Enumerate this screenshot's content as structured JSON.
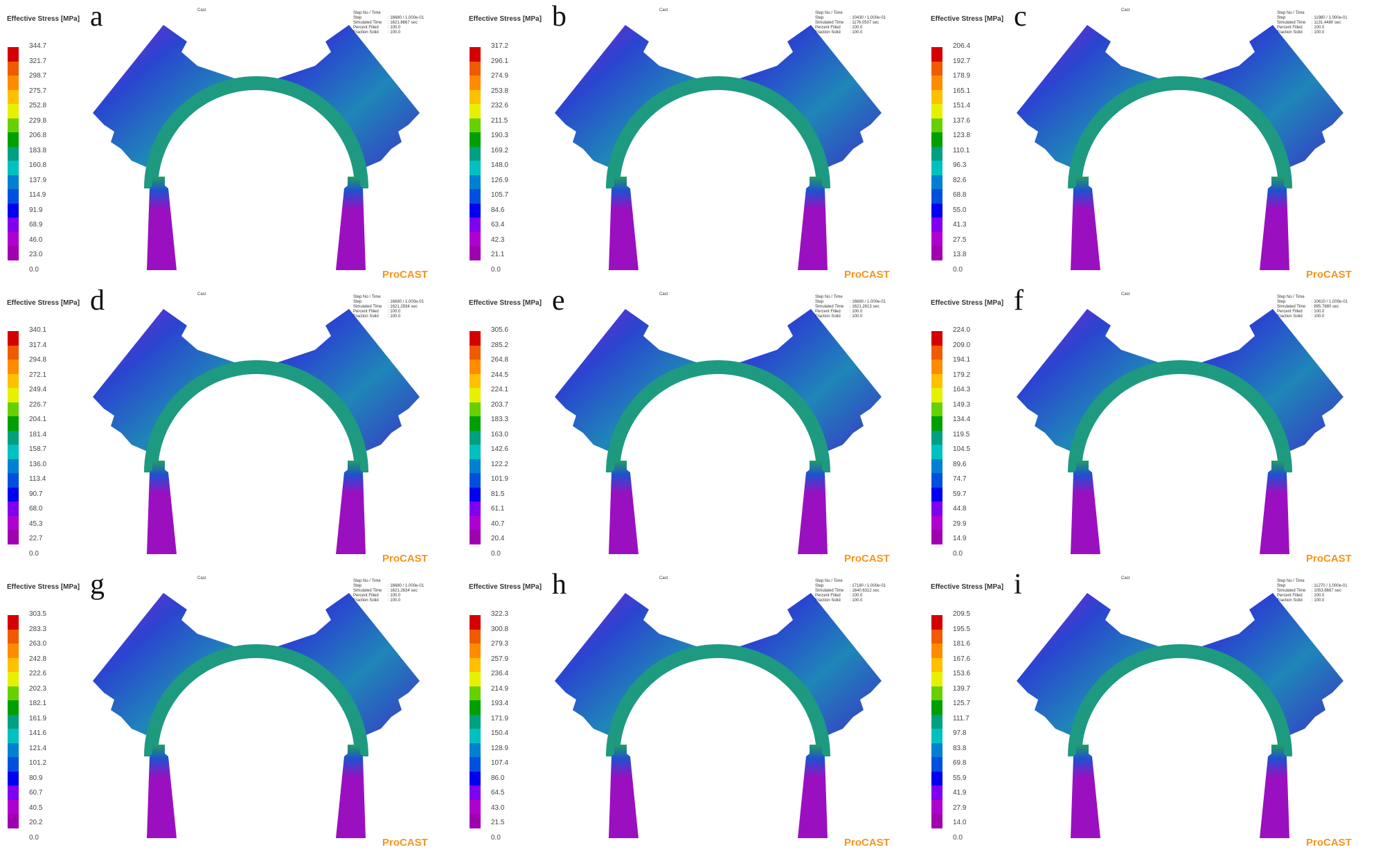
{
  "legend_title": "Effective Stress [MPa]",
  "colormap": [
    "#d40000",
    "#f05a00",
    "#ff8c00",
    "#ffc000",
    "#e6f000",
    "#66d000",
    "#00a000",
    "#00a080",
    "#00c0c0",
    "#0080d0",
    "#0050e0",
    "#0000f0",
    "#8000f0",
    "#b000d0",
    "#a000b0"
  ],
  "info_labels": [
    "Step No / Time Step",
    "Simulated Time",
    "Percent Filled",
    "Fraction Solid"
  ],
  "cast_label": "Cast",
  "logo": "ProCAST",
  "panels": [
    {
      "letter": "a",
      "legend_values": [
        "344.7",
        "321.7",
        "298.7",
        "275.7",
        "252.8",
        "229.8",
        "206.8",
        "183.8",
        "160.8",
        "137.9",
        "114.9",
        "91.9",
        "68.9",
        "46.0",
        "23.0",
        "0.0"
      ],
      "info_values": [
        ": 16680 / 1.000e-01",
        ": 1621.8667 sec",
        ": 100.0",
        ": 100.0"
      ]
    },
    {
      "letter": "b",
      "legend_values": [
        "317.2",
        "296.1",
        "274.9",
        "253.8",
        "232.6",
        "211.5",
        "190.3",
        "169.2",
        "148.0",
        "126.9",
        "105.7",
        "84.6",
        "63.4",
        "42.3",
        "21.1",
        "0.0"
      ],
      "info_values": [
        ": 10430 / 1.000e-01",
        ": 1176.0507 sec",
        ": 100.0",
        ": 100.0"
      ]
    },
    {
      "letter": "c",
      "legend_values": [
        "206.4",
        "192.7",
        "178.9",
        "165.1",
        "151.4",
        "137.6",
        "123.8",
        "110.1",
        "96.3",
        "82.6",
        "68.8",
        "55.0",
        "41.3",
        "27.5",
        "13.8",
        "0.0"
      ],
      "info_values": [
        ": 11980 / 1.000e-01",
        ": 1131.4480 sec",
        ": 100.0",
        ": 100.0"
      ]
    },
    {
      "letter": "d",
      "legend_values": [
        "340.1",
        "317.4",
        "294.8",
        "272.1",
        "249.4",
        "226.7",
        "204.1",
        "181.4",
        "158.7",
        "136.0",
        "113.4",
        "90.7",
        "68.0",
        "45.3",
        "22.7",
        "0.0"
      ],
      "info_values": [
        ": 16680 / 1.000e-01",
        ": 1621.2934 sec",
        ": 100.0",
        ": 100.0"
      ]
    },
    {
      "letter": "e",
      "legend_values": [
        "305.6",
        "285.2",
        "264.8",
        "244.5",
        "224.1",
        "203.7",
        "183.3",
        "163.0",
        "142.6",
        "122.2",
        "101.9",
        "81.5",
        "61.1",
        "40.7",
        "20.4",
        "0.0"
      ],
      "info_values": [
        ": 16680 / 1.000e-01",
        ": 1621.2813 sec",
        ": 100.0",
        ": 100.0"
      ]
    },
    {
      "letter": "f",
      "legend_values": [
        "224.0",
        "209.0",
        "194.1",
        "179.2",
        "164.3",
        "149.3",
        "134.4",
        "119.5",
        "104.5",
        "89.6",
        "74.7",
        "59.7",
        "44.8",
        "29.9",
        "14.9",
        "0.0"
      ],
      "info_values": [
        ": 10610 / 1.000e-01",
        ": 895.7680 sec",
        ": 100.0",
        ": 100.0"
      ]
    },
    {
      "letter": "g",
      "legend_values": [
        "303.5",
        "283.3",
        "263.0",
        "242.8",
        "222.6",
        "202.3",
        "182.1",
        "161.9",
        "141.6",
        "121.4",
        "101.2",
        "80.9",
        "60.7",
        "40.5",
        "20.2",
        "0.0"
      ],
      "info_values": [
        ": 16680 / 1.000e-01",
        ": 1621.2634 sec",
        ": 100.0",
        ": 100.0"
      ]
    },
    {
      "letter": "h",
      "legend_values": [
        "322.3",
        "300.8",
        "279.3",
        "257.9",
        "236.4",
        "214.9",
        "193.4",
        "171.9",
        "150.4",
        "128.9",
        "107.4",
        "86.0",
        "64.5",
        "43.0",
        "21.5",
        "0.0"
      ],
      "info_values": [
        ": 17180 / 1.000e-01",
        ": 1640.6312 sec",
        ": 100.0",
        ": 100.0"
      ]
    },
    {
      "letter": "i",
      "legend_values": [
        "209.5",
        "195.5",
        "181.6",
        "167.6",
        "153.6",
        "139.7",
        "125.7",
        "111.7",
        "97.8",
        "83.8",
        "69.8",
        "55.9",
        "41.9",
        "27.9",
        "14.0",
        "0.0"
      ],
      "info_values": [
        ": 11270 / 1.000e-01",
        ": 1053.6667 sec",
        ": 100.0",
        ": 100.0"
      ]
    }
  ]
}
